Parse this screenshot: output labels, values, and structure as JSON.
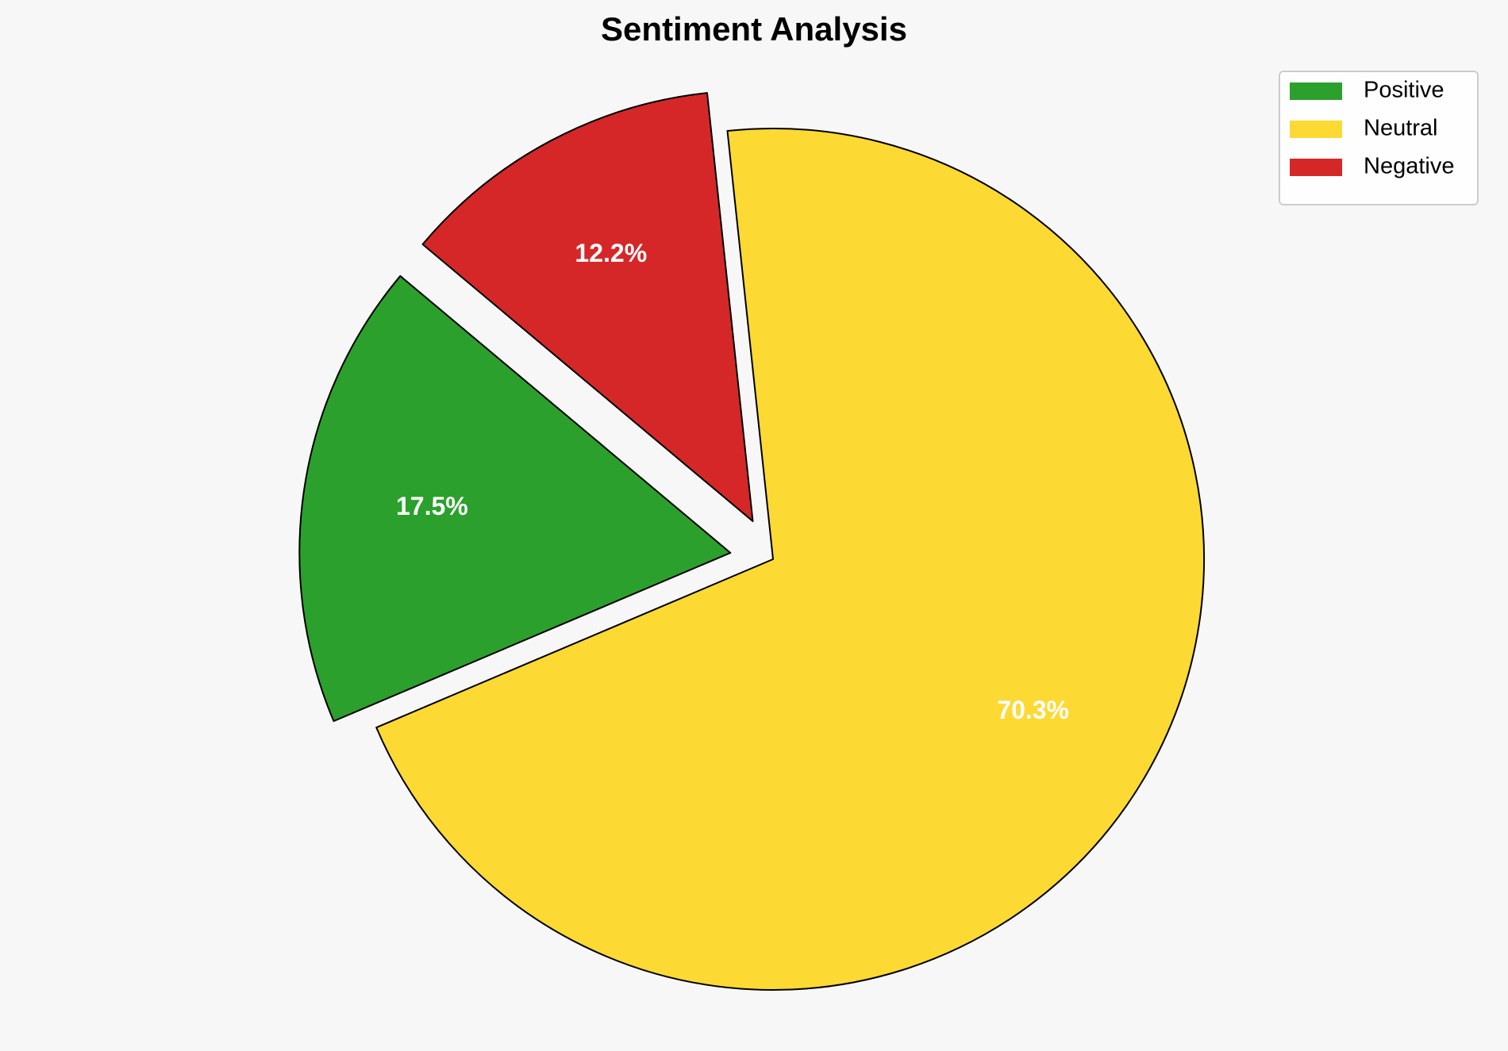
{
  "chart_data": {
    "type": "pie",
    "title": "Sentiment Analysis",
    "categories": [
      "Positive",
      "Neutral",
      "Negative"
    ],
    "values": [
      17.5,
      70.3,
      12.2
    ],
    "value_labels": [
      "17.5%",
      "70.3%",
      "12.2%"
    ],
    "colors": [
      "#2ca02c",
      "#fdd933",
      "#d62728"
    ],
    "explode": [
      0.1,
      0,
      0.1
    ],
    "start_angle": 140,
    "legend": "upper right"
  }
}
